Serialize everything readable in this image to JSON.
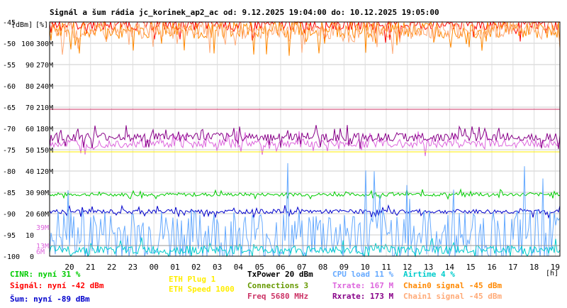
{
  "chart_data": {
    "type": "line",
    "title": "Signál a šum rádia jc_korinek_ap2_ac od: 9.12.2025 19:04:00 do: 10.12.2025 19:05:00",
    "unit_labels": [
      "[dBm]",
      "[%]"
    ],
    "x_unit": "[h]",
    "x_ticks": [
      "20",
      "21",
      "22",
      "23",
      "00",
      "01",
      "02",
      "03",
      "04",
      "05",
      "06",
      "07",
      "08",
      "09",
      "10",
      "11",
      "12",
      "13",
      "14",
      "15",
      "16",
      "17",
      "18",
      "19"
    ],
    "y_left": {
      "label": "dBm",
      "ticks": [
        "-45",
        "-50",
        "-55",
        "-60",
        "-65",
        "-70",
        "-75",
        "-80",
        "-85",
        "-90",
        "-95",
        "-100"
      ],
      "ylim": [
        -100,
        -45
      ]
    },
    "y_pct": {
      "ticks": [
        "100",
        "90",
        "80",
        "70",
        "60",
        "50",
        "40",
        "30",
        "20",
        "10",
        "0"
      ]
    },
    "y_rate": {
      "ticks": [
        "300M",
        "270M",
        "240M",
        "210M",
        "180M",
        "150M",
        "120M",
        "90M",
        "60M"
      ],
      "markers": [
        "39M",
        "13M",
        "6M"
      ]
    },
    "grid": true,
    "series": [
      {
        "name": "CINR",
        "color": "#00cc00",
        "level": -85.5,
        "noise": 0.4
      },
      {
        "name": "Signál",
        "color": "#ff0000",
        "level": -45.5,
        "noise": 1.5
      },
      {
        "name": "Šum",
        "color": "#0000cc",
        "level": -89.5,
        "noise": 0.5
      },
      {
        "name": "CPU load",
        "color": "#66aaff",
        "level": -95,
        "noise": 6
      },
      {
        "name": "Airtime",
        "color": "#00cccc",
        "level": -98.5,
        "noise": 1
      },
      {
        "name": "Txrate",
        "color": "#dd66dd",
        "level": -73.5,
        "noise": 1
      },
      {
        "name": "Rxrate",
        "color": "#880088",
        "level": -72,
        "noise": 1
      },
      {
        "name": "Chain0 signal",
        "color": "#ff8800",
        "level": -47,
        "noise": 2
      },
      {
        "name": "Chain1 signal",
        "color": "#ffaa77",
        "level": -47,
        "noise": 2
      }
    ],
    "reference_lines": [
      {
        "name": "TxPower",
        "color": "#cc3366",
        "value": -65.5
      },
      {
        "name": "Connections",
        "color": "#ffee00",
        "value": -75.5
      },
      {
        "name": "ETH Speed",
        "color": "#999999",
        "value": -97.5
      }
    ]
  },
  "legend": {
    "cinr": "CINR: nyní 31 %",
    "signal": "Signál: nyní -42 dBm",
    "noise": "Šum: nyní -89 dBm",
    "eth_plug": "ETH Plug 1",
    "eth_speed": "ETH Speed 1000",
    "txpower": "TxPower 20 dBm",
    "connections": "Connections 3",
    "freq": "Freq 5680 MHz",
    "cpu": "CPU load 11 %",
    "txrate": "Txrate: 167 M",
    "rxrate": "Rxrate: 173 M",
    "airtime": "Airtime 4 %",
    "chain0": "Chain0 signal -45 dBm",
    "chain1": "Chain1 signal -45 dBm"
  },
  "colors": {
    "cinr": "#00cc00",
    "signal": "#ff0000",
    "noise": "#0000cc",
    "eth_plug": "#ffee00",
    "eth_speed": "#ffee00",
    "txpower": "#000000",
    "connections": "#669900",
    "freq": "#cc3366",
    "cpu": "#66aaff",
    "txrate": "#dd66dd",
    "rxrate": "#880088",
    "airtime": "#00cccc",
    "chain0": "#ff8800",
    "chain1": "#ffaa77"
  }
}
